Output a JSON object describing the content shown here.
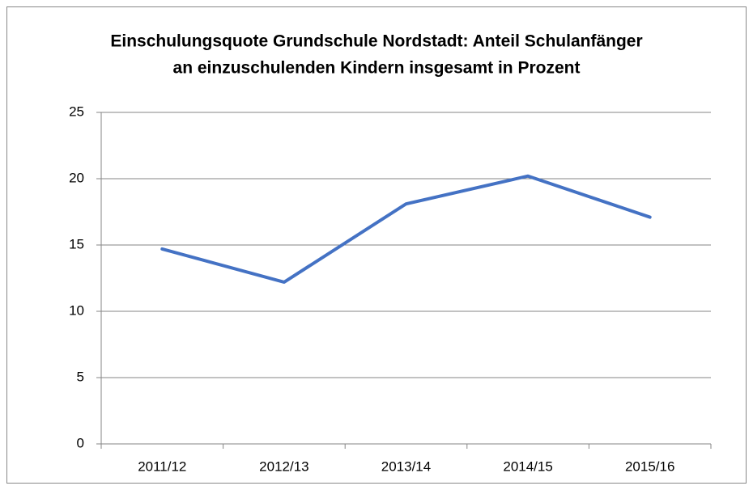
{
  "chart_data": {
    "type": "line",
    "title": [
      "Einschulungsquote Grundschule Nordstadt: Anteil Schulanfänger",
      "an einzuschulenden Kindern insgesamt in Prozent"
    ],
    "categories": [
      "2011/12",
      "2012/13",
      "2013/14",
      "2014/15",
      "2015/16"
    ],
    "values": [
      14.7,
      12.2,
      18.1,
      20.2,
      17.1
    ],
    "color": "#4472c4",
    "ylim": [
      0,
      25
    ],
    "yticks": [
      0,
      5,
      10,
      15,
      20,
      25
    ],
    "grid": true
  }
}
